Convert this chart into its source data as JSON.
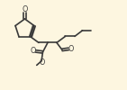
{
  "bg_color": "#fdf6e0",
  "line_color": "#3a3a3a",
  "lw": 1.2,
  "figsize": [
    1.41,
    1.0
  ],
  "dpi": 100,
  "xlim": [
    0,
    14
  ],
  "ylim": [
    0,
    10
  ]
}
